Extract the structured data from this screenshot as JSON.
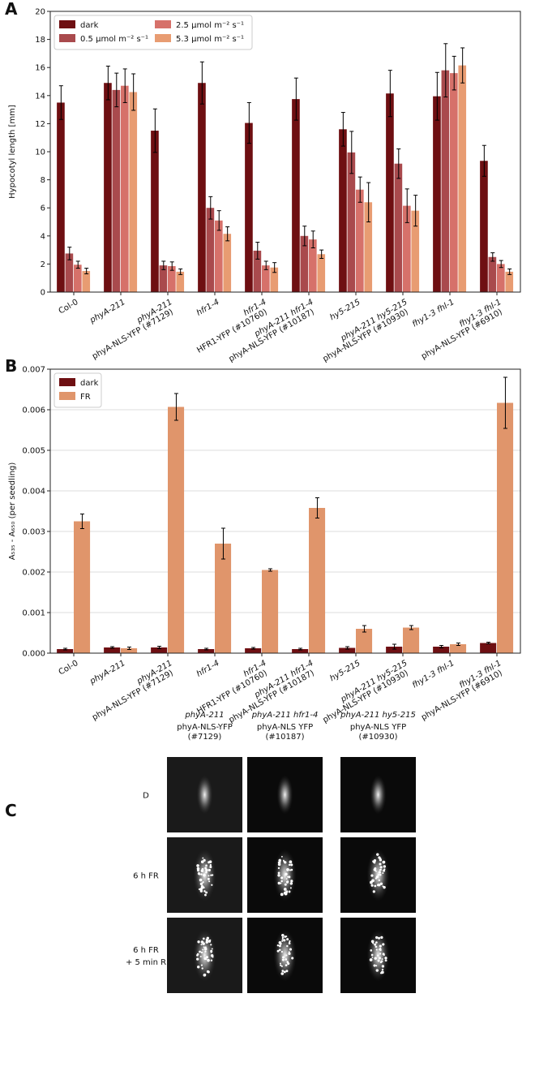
{
  "chart_data": [
    {
      "type": "bar",
      "label": "A",
      "ylabel": "Hypocotyl length [mm]",
      "categories": [
        [
          "Col-0"
        ],
        [
          "phyA-211"
        ],
        [
          "phyA-211",
          "phyA-NLS-YFP (#7129)"
        ],
        [
          "hfr1-4"
        ],
        [
          "hfr1-4",
          "HFR1-YFP (#10760)"
        ],
        [
          "phyA-211 hfr1-4",
          "phyA-NLS-YFP (#10187)"
        ],
        [
          "hy5-215"
        ],
        [
          "phyA-211 hy5-215",
          "phyA-NLS-YFP (#10930)"
        ],
        [
          "fhy1-3 fhl-1"
        ],
        [
          "fhy1-3 fhl-1",
          "phyA-NLS-YFP (#6910)"
        ]
      ],
      "series": [
        {
          "name": "dark",
          "color": "#6e0f12",
          "values": [
            13.5,
            14.9,
            11.5,
            14.9,
            12.05,
            13.75,
            11.6,
            14.15,
            13.95,
            9.35
          ],
          "errors": [
            1.2,
            1.2,
            1.55,
            1.5,
            1.45,
            1.5,
            1.2,
            1.65,
            1.7,
            1.1
          ]
        },
        {
          "name": "0.5 µmol m⁻² s⁻¹",
          "color": "#a94a4d",
          "values": [
            2.75,
            14.4,
            1.9,
            6.0,
            2.95,
            4.0,
            9.95,
            9.15,
            15.8,
            2.5
          ],
          "errors": [
            0.45,
            1.2,
            0.3,
            0.8,
            0.6,
            0.7,
            1.5,
            1.05,
            1.9,
            0.3
          ]
        },
        {
          "name": "2.5 µmol m⁻² s⁻¹",
          "color": "#d6716a",
          "values": [
            1.95,
            14.7,
            1.85,
            5.1,
            1.9,
            3.75,
            7.3,
            6.15,
            15.6,
            2.0
          ],
          "errors": [
            0.25,
            1.2,
            0.3,
            0.7,
            0.3,
            0.6,
            0.9,
            1.2,
            1.2,
            0.25
          ]
        },
        {
          "name": "5.3 µmol m⁻² s⁻¹",
          "color": "#e89c72",
          "values": [
            1.5,
            14.25,
            1.45,
            4.15,
            1.75,
            2.7,
            6.4,
            5.8,
            16.15,
            1.45
          ],
          "errors": [
            0.2,
            1.3,
            0.2,
            0.5,
            0.35,
            0.3,
            1.4,
            1.1,
            1.25,
            0.2
          ]
        }
      ],
      "ylim": [
        0,
        20
      ],
      "yticks": [
        0,
        2,
        4,
        6,
        8,
        10,
        12,
        14,
        16,
        18,
        20
      ],
      "grid": false,
      "legend": "upper left",
      "legend_ncol": 2
    },
    {
      "type": "bar",
      "label": "B",
      "ylabel": "A₅₃₅ - A₆₅₀ (per seedling)",
      "categories": [
        [
          "Col-0"
        ],
        [
          "phyA-211"
        ],
        [
          "phyA-211",
          "phyA-NLS-YFP (#7129)"
        ],
        [
          "hfr1-4"
        ],
        [
          "hfr1-4",
          "HFR1-YFP (#10760)"
        ],
        [
          "phyA-211 hfr1-4",
          "phyA-NLS-YFP (#10187)"
        ],
        [
          "hy5-215"
        ],
        [
          "phyA-211 hy5-215",
          "phyA-NLS-YFP (#10930)"
        ],
        [
          "fhy1-3 fhl-1"
        ],
        [
          "fhy1-3 fhl-1",
          "phyA-NLS-YFP (#6910)"
        ]
      ],
      "series": [
        {
          "name": "dark",
          "color": "#6e0f12",
          "values": [
            0.0001,
            0.00014,
            0.00014,
            0.0001,
            0.00012,
            0.0001,
            0.00013,
            0.00016,
            0.00016,
            0.00025
          ],
          "errors": [
            2e-05,
            2e-05,
            3e-05,
            2e-05,
            2e-05,
            2e-05,
            3e-05,
            6e-05,
            3e-05,
            2e-05
          ]
        },
        {
          "name": "FR",
          "color": "#e0956b",
          "values": [
            0.00325,
            0.00012,
            0.00607,
            0.0027,
            0.00205,
            0.00358,
            0.0006,
            0.00063,
            0.00022,
            0.00617
          ],
          "errors": [
            0.00018,
            3e-05,
            0.00033,
            0.00038,
            3e-05,
            0.00025,
            8e-05,
            5e-05,
            3e-05,
            0.00063
          ]
        }
      ],
      "ylim": [
        0,
        0.007
      ],
      "yticks": [
        {
          "value": 0,
          "label": "0.000"
        },
        {
          "value": 0.001,
          "label": "0.001"
        },
        {
          "value": 0.002,
          "label": "0.002"
        },
        {
          "value": 0.003,
          "label": "0.003"
        },
        {
          "value": 0.004,
          "label": "0.004"
        },
        {
          "value": 0.005,
          "label": "0.005"
        },
        {
          "value": 0.006,
          "label": "0.006"
        },
        {
          "value": 0.007,
          "label": "0.007"
        }
      ],
      "grid": true,
      "legend": "upper left",
      "legend_ncol": 1
    }
  ],
  "panel_c": {
    "label": "C",
    "columns": [
      [
        "phyA-211",
        "phyA-NLS-YFP",
        "(#7129)"
      ],
      [
        "phyA-211 hfr1-4",
        "phyA-NLS YFP",
        "(#10187)"
      ],
      [
        "phyA-211 hy5-215",
        "phyA-NLS YFP",
        "(#10930)"
      ]
    ],
    "rows": [
      [
        "D"
      ],
      [
        "6 h FR"
      ],
      [
        "6 h FR",
        "+ 5 min R"
      ]
    ]
  }
}
